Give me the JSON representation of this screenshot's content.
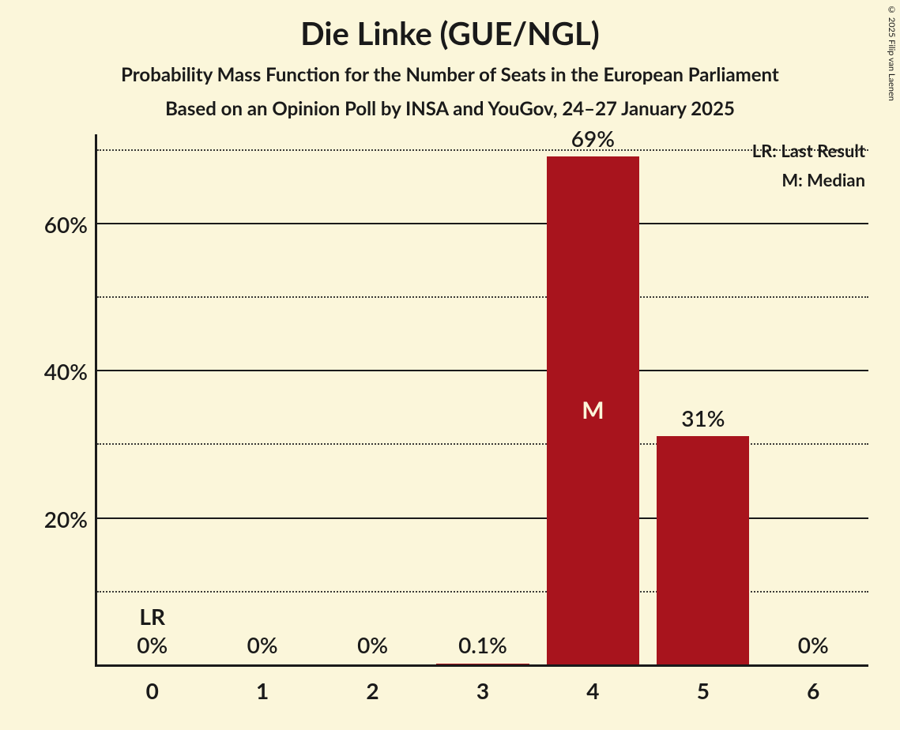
{
  "title": "Die Linke (GUE/NGL)",
  "subtitle1": "Probability Mass Function for the Number of Seats in the European Parliament",
  "subtitle2": "Based on an Opinion Poll by INSA and YouGov, 24–27 January 2025",
  "copyright": "© 2025 Filip van Laenen",
  "legend": {
    "lr": "LR: Last Result",
    "m": "M: Median"
  },
  "chart": {
    "type": "bar",
    "background_color": "#fbf6da",
    "bar_color": "#a8141d",
    "axis_color": "#1a1a1a",
    "text_color": "#1a1a1a",
    "median_text_color": "#fbf6da",
    "categories": [
      "0",
      "1",
      "2",
      "3",
      "4",
      "5",
      "6"
    ],
    "values": [
      0,
      0,
      0,
      0.1,
      69,
      31,
      0
    ],
    "value_labels": [
      "0%",
      "0%",
      "0%",
      "0.1%",
      "69%",
      "31%",
      "0%"
    ],
    "lr_index": 0,
    "lr_text": "LR",
    "median_index": 4,
    "median_text": "M",
    "ymax": 72,
    "y_major_ticks": [
      20,
      40,
      60
    ],
    "y_minor_ticks": [
      10,
      30,
      50,
      70
    ],
    "y_major_labels": [
      "20%",
      "40%",
      "60%"
    ],
    "title_fontsize": 40,
    "subtitle_fontsize": 24,
    "axis_label_fontsize": 28,
    "bar_width_ratio": 0.84
  }
}
